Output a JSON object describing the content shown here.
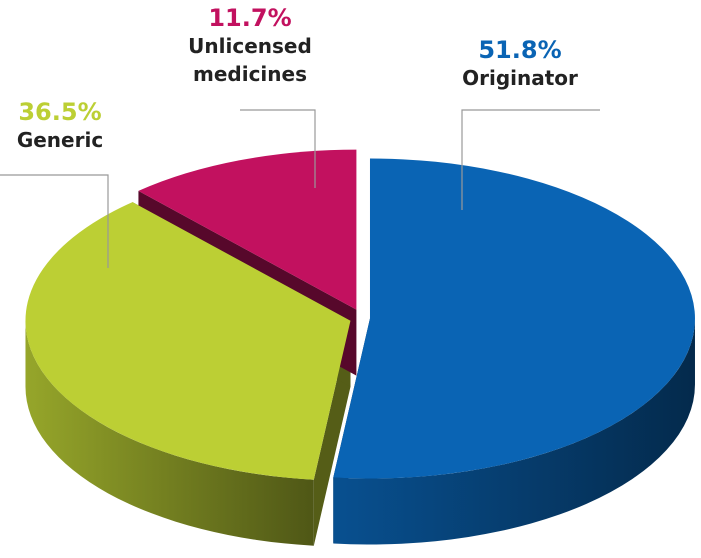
{
  "chart_data": {
    "type": "pie",
    "categories": [
      "Originator",
      "Generic",
      "Unlicensed medicines"
    ],
    "values": [
      51.8,
      36.5,
      11.7
    ],
    "value_labels": [
      "51.8%",
      "36.5%",
      "11.7%"
    ],
    "colors": [
      "#0a64b4",
      "#bccf34",
      "#c2115f"
    ]
  }
}
